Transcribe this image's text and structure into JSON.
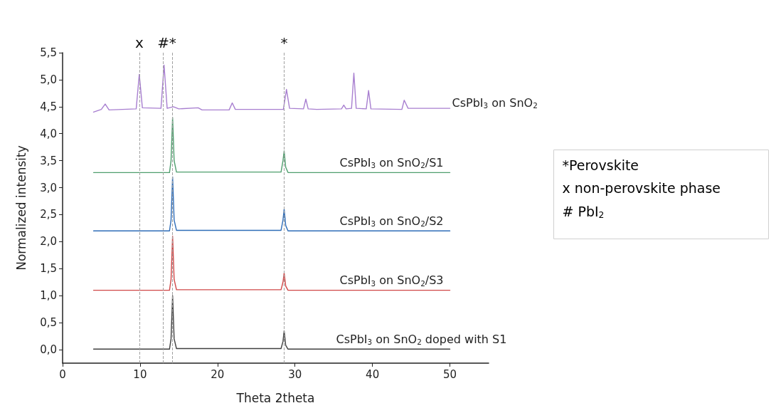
{
  "chart_data": {
    "type": "line",
    "xlabel": "Theta 2theta",
    "ylabel": "Normalized intensity",
    "xlim": [
      0,
      55
    ],
    "xticks": [
      0,
      10,
      20,
      30,
      40,
      50
    ],
    "ylim": [
      -0.25,
      5.5
    ],
    "yticks": [
      {
        "value": 0,
        "label": "0,0"
      },
      {
        "value": 0.5,
        "label": "0,5"
      },
      {
        "value": 1,
        "label": "1,0"
      },
      {
        "value": 1.5,
        "label": "1,5"
      },
      {
        "value": 2,
        "label": "2,0"
      },
      {
        "value": 2.5,
        "label": "2,5"
      },
      {
        "value": 3,
        "label": "3,0"
      },
      {
        "value": 3.5,
        "label": "3,5"
      },
      {
        "value": 4,
        "label": "4,0"
      },
      {
        "value": 4.5,
        "label": "4,5"
      },
      {
        "value": 5,
        "label": "5,0"
      },
      {
        "value": 5.5,
        "label": "5,5"
      }
    ],
    "grid": false,
    "marker": "none",
    "line_style": "solid",
    "series": [
      {
        "name": "CsPbI$_{3}$ on SnO$_{2}$",
        "color": "#a87fd0",
        "x": [
          4,
          5,
          5.5,
          6,
          9.5,
          9.9,
          10.3,
          12.7,
          13.1,
          13.5,
          14.3,
          15,
          17.5,
          18,
          21.5,
          21.9,
          22.3,
          28.5,
          28.9,
          29.3,
          31.1,
          31.4,
          31.7,
          32.8,
          36,
          36.3,
          36.6,
          37.3,
          37.6,
          37.9,
          39.2,
          39.5,
          39.8,
          43.8,
          44.1,
          44.6,
          50
        ],
        "values": [
          4.4,
          4.45,
          4.55,
          4.44,
          4.46,
          5.1,
          4.48,
          4.47,
          5.27,
          4.47,
          4.5,
          4.46,
          4.48,
          4.44,
          4.44,
          4.57,
          4.45,
          4.45,
          4.82,
          4.47,
          4.46,
          4.64,
          4.46,
          4.45,
          4.46,
          4.53,
          4.46,
          4.47,
          5.12,
          4.47,
          4.46,
          4.8,
          4.46,
          4.45,
          4.62,
          4.47,
          4.47
        ]
      },
      {
        "name": "CsPbI$_{3}$ on SnO$_{2}$/S1",
        "color": "#4f9e6e",
        "x": [
          4,
          13.8,
          14.0,
          14.2,
          14.4,
          14.7,
          28.2,
          28.45,
          28.6,
          28.8,
          29.1,
          50
        ],
        "values": [
          3.28,
          3.28,
          3.5,
          4.3,
          3.5,
          3.29,
          3.29,
          3.5,
          3.68,
          3.38,
          3.28,
          3.28
        ]
      },
      {
        "name": "CsPbI$_{3}$ on SnO$_{2}$/S2",
        "color": "#2f6db8",
        "x": [
          4,
          13.8,
          14.0,
          14.2,
          14.4,
          14.7,
          28.2,
          28.45,
          28.6,
          28.8,
          29.1,
          50
        ],
        "values": [
          2.2,
          2.2,
          2.4,
          3.2,
          2.4,
          2.21,
          2.21,
          2.4,
          2.6,
          2.3,
          2.2,
          2.2
        ]
      },
      {
        "name": "CsPbI$_{3}$ on SnO$_{2}$/S3",
        "color": "#d04848",
        "x": [
          4,
          13.8,
          14.0,
          14.2,
          14.4,
          14.7,
          28.2,
          28.45,
          28.6,
          28.8,
          29.1,
          50
        ],
        "values": [
          1.1,
          1.1,
          1.3,
          2.1,
          1.3,
          1.11,
          1.11,
          1.25,
          1.42,
          1.18,
          1.1,
          1.1
        ]
      },
      {
        "name": "CsPbI$_{3}$ on SnO$_{2}$ doped with S1",
        "color": "#404040",
        "x": [
          4,
          13.8,
          14.0,
          14.2,
          14.4,
          14.7,
          28.2,
          28.45,
          28.6,
          28.8,
          29.1,
          50
        ],
        "values": [
          0.01,
          0.01,
          0.2,
          1.0,
          0.2,
          0.02,
          0.02,
          0.15,
          0.35,
          0.08,
          0.01,
          0.01
        ]
      }
    ],
    "ref_lines": [
      {
        "axis": "x",
        "value": 9.9,
        "label": "x",
        "color": "#a0a0a0",
        "line_style": "dashed"
      },
      {
        "axis": "x",
        "value": 13,
        "label": "#",
        "color": "#a0a0a0",
        "line_style": "dashed"
      },
      {
        "axis": "x",
        "value": 14.2,
        "label": "*",
        "color": "#a0a0a0",
        "line_style": "dashed"
      },
      {
        "axis": "x",
        "value": 28.6,
        "label": "*",
        "color": "#a0a0a0",
        "line_style": "dashed"
      }
    ],
    "annotations": [
      "*Perovskite",
      "x non-perovskite phase",
      "# PbI$_{2}$"
    ]
  }
}
